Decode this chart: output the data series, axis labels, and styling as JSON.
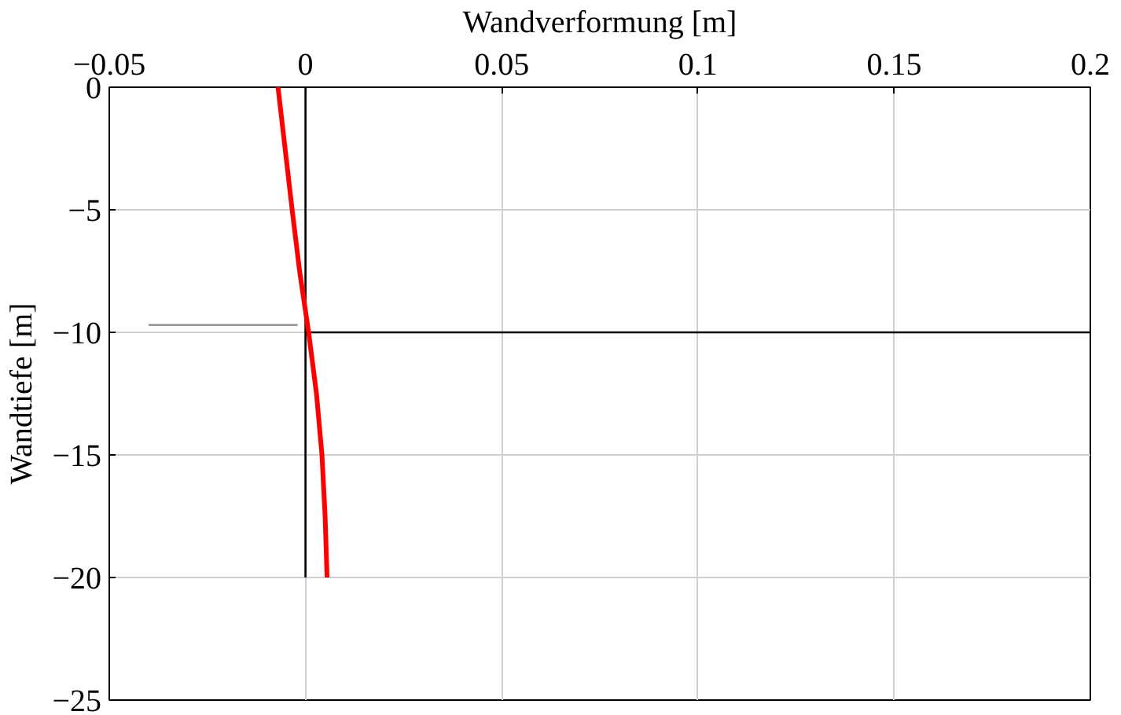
{
  "chart_data": {
    "type": "line",
    "xlabel": "Wandverformung [m]",
    "ylabel": "Wandtiefe [m]",
    "xlim": [
      -0.05,
      0.2
    ],
    "xticks": [
      -0.05,
      0,
      0.05,
      0.1,
      0.15,
      0.2
    ],
    "ylim": [
      -25,
      0
    ],
    "yticks": [
      -25,
      -20,
      -15,
      -10,
      -5,
      0
    ],
    "grid": true,
    "marker": "none",
    "line_style": "solid",
    "series": [
      {
        "color": "#000000",
        "x": [
          0,
          0
        ],
        "values": [
          0,
          -20
        ]
      },
      {
        "color": "#000000",
        "x": [
          0,
          0.2
        ],
        "values": [
          -10,
          -10
        ]
      },
      {
        "color": "#999999",
        "x": [
          -0.04,
          -0.002
        ],
        "values": [
          -9.7,
          -9.7
        ]
      },
      {
        "color": "#ff0000",
        "x": [
          -0.007,
          -0.0052,
          -0.0034,
          -0.0015,
          0.0008,
          0.0028,
          0.0042,
          0.005,
          0.0055
        ],
        "values": [
          0,
          -2.5,
          -5,
          -7.5,
          -10,
          -12.5,
          -15,
          -17.5,
          -20
        ]
      }
    ]
  }
}
